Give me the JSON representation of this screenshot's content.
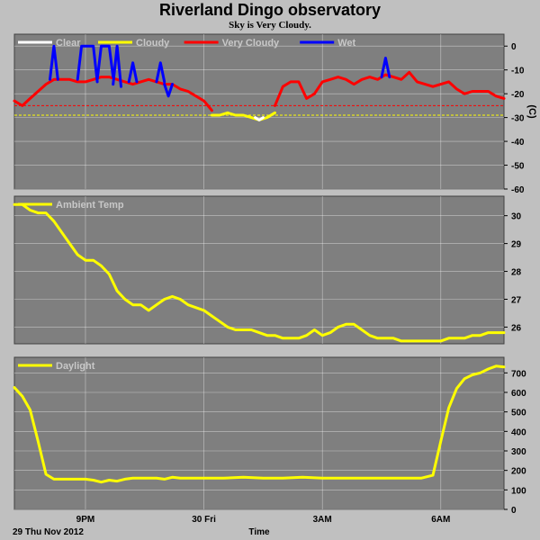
{
  "title": "Riverland Dingo observatory",
  "subtitle": "Sky is Very Cloudy.",
  "colors": {
    "background": "#c0c0c0",
    "panel": "#7f7f7f",
    "grid": "#ffffff",
    "clear": "#ffffff",
    "cloudy": "#ffff00",
    "very_cloudy": "#ff0000",
    "wet": "#0000ff",
    "temp": "#ffff00",
    "daylight": "#ffff00",
    "threshold_very_cloudy": "#ff0000",
    "threshold_cloudy": "#ffff00"
  },
  "x_axis": {
    "label": "Time",
    "date_label": "29 Thu Nov 2012",
    "ticks": [
      {
        "x": 21.0,
        "label": "9PM"
      },
      {
        "x": 24.0,
        "label": "30 Fri"
      },
      {
        "x": 27.0,
        "label": "3AM"
      },
      {
        "x": 30.0,
        "label": "6AM"
      }
    ],
    "range": [
      19.2,
      31.6
    ]
  },
  "chart_data": [
    {
      "type": "line",
      "ylabel": "(C)",
      "ylim": [
        -60,
        5
      ],
      "yticks": [
        0,
        -10,
        -20,
        -30,
        -40,
        -50,
        -60
      ],
      "legend": [
        "Clear",
        "Cloudy",
        "Very Cloudy",
        "Wet"
      ],
      "grid": true,
      "thresholds": [
        {
          "name": "very cloudy limit",
          "value": -25,
          "style": "dashed",
          "color": "#ff0000"
        },
        {
          "name": "cloudy limit",
          "value": -29,
          "style": "dashed",
          "color": "#ffff00"
        }
      ],
      "series": [
        {
          "name": "Very Cloudy",
          "color": "#ff0000",
          "points": [
            [
              19.2,
              -23
            ],
            [
              19.4,
              -25
            ],
            [
              19.6,
              -22
            ],
            [
              19.8,
              -19
            ],
            [
              20.0,
              -16
            ],
            [
              20.2,
              -14
            ],
            [
              20.4,
              -14
            ],
            [
              20.6,
              -14
            ],
            [
              20.8,
              -15
            ],
            [
              21.0,
              -15
            ],
            [
              21.2,
              -14
            ],
            [
              21.4,
              -13
            ],
            [
              21.6,
              -13
            ],
            [
              21.8,
              -14
            ],
            [
              22.0,
              -15
            ],
            [
              22.2,
              -16
            ],
            [
              22.4,
              -15
            ],
            [
              22.6,
              -14
            ],
            [
              22.8,
              -15
            ],
            [
              23.0,
              -16
            ],
            [
              23.2,
              -16
            ],
            [
              23.4,
              -18
            ],
            [
              23.6,
              -19
            ],
            [
              23.8,
              -21
            ],
            [
              24.0,
              -23
            ],
            [
              24.2,
              -27
            ]
          ]
        },
        {
          "name": "Cloudy",
          "color": "#ffff00",
          "points": [
            [
              24.2,
              -29
            ],
            [
              24.4,
              -29
            ],
            [
              24.6,
              -28
            ],
            [
              24.8,
              -29
            ],
            [
              25.0,
              -29
            ],
            [
              25.2,
              -30
            ],
            [
              25.4,
              -31
            ],
            [
              25.6,
              -30
            ],
            [
              25.8,
              -28
            ]
          ]
        },
        {
          "name": "Very Cloudy",
          "color": "#ff0000",
          "points": [
            [
              25.8,
              -25
            ],
            [
              26.0,
              -17
            ],
            [
              26.2,
              -15
            ],
            [
              26.4,
              -15
            ],
            [
              26.6,
              -22
            ],
            [
              26.8,
              -20
            ],
            [
              27.0,
              -15
            ],
            [
              27.2,
              -14
            ],
            [
              27.4,
              -13
            ],
            [
              27.6,
              -14
            ],
            [
              27.8,
              -16
            ],
            [
              28.0,
              -14
            ],
            [
              28.2,
              -13
            ],
            [
              28.4,
              -14
            ],
            [
              28.6,
              -12
            ],
            [
              28.8,
              -13
            ],
            [
              29.0,
              -14
            ],
            [
              29.2,
              -11
            ],
            [
              29.4,
              -15
            ],
            [
              29.6,
              -16
            ],
            [
              29.8,
              -17
            ],
            [
              30.0,
              -16
            ],
            [
              30.2,
              -15
            ],
            [
              30.4,
              -18
            ],
            [
              30.6,
              -20
            ],
            [
              30.8,
              -19
            ],
            [
              31.0,
              -19
            ],
            [
              31.2,
              -19
            ],
            [
              31.4,
              -21
            ],
            [
              31.6,
              -22
            ]
          ]
        },
        {
          "name": "Clear",
          "color": "#ffffff",
          "points": [
            [
              25.3,
              -30
            ],
            [
              25.4,
              -31
            ],
            [
              25.5,
              -30
            ]
          ]
        },
        {
          "name": "Wet",
          "color": "#0000ff",
          "points": [
            [
              20.1,
              -14
            ],
            [
              20.2,
              0
            ],
            [
              20.3,
              -14
            ]
          ]
        },
        {
          "name": "Wet",
          "color": "#0000ff",
          "points": [
            [
              20.8,
              -14
            ],
            [
              20.9,
              0
            ],
            [
              21.2,
              0
            ],
            [
              21.3,
              -15
            ]
          ]
        },
        {
          "name": "Wet",
          "color": "#0000ff",
          "points": [
            [
              21.3,
              -14
            ],
            [
              21.4,
              0
            ],
            [
              21.6,
              0
            ],
            [
              21.7,
              -13
            ]
          ]
        },
        {
          "name": "Wet",
          "color": "#0000ff",
          "points": [
            [
              21.7,
              -16
            ],
            [
              21.8,
              0
            ],
            [
              21.9,
              -17
            ]
          ]
        },
        {
          "name": "Wet",
          "color": "#0000ff",
          "points": [
            [
              22.1,
              -15
            ],
            [
              22.2,
              -7
            ],
            [
              22.3,
              -15
            ]
          ]
        },
        {
          "name": "Wet",
          "color": "#0000ff",
          "points": [
            [
              22.8,
              -15
            ],
            [
              22.9,
              -7
            ],
            [
              23.0,
              -15
            ]
          ]
        },
        {
          "name": "Wet",
          "color": "#0000ff",
          "points": [
            [
              23.0,
              -16
            ],
            [
              23.1,
              -21
            ],
            [
              23.2,
              -16
            ]
          ]
        },
        {
          "name": "Wet",
          "color": "#0000ff",
          "points": [
            [
              28.5,
              -13
            ],
            [
              28.6,
              -5
            ],
            [
              28.7,
              -13
            ]
          ]
        }
      ]
    },
    {
      "type": "line",
      "ylim": [
        25.4,
        30.7
      ],
      "yticks": [
        26,
        27,
        28,
        29,
        30
      ],
      "legend": [
        "Ambient Temp"
      ],
      "grid": true,
      "series": [
        {
          "name": "Ambient Temp",
          "color": "#ffff00",
          "points": [
            [
              19.2,
              30.4
            ],
            [
              19.4,
              30.4
            ],
            [
              19.6,
              30.2
            ],
            [
              19.8,
              30.1
            ],
            [
              20.0,
              30.1
            ],
            [
              20.2,
              29.8
            ],
            [
              20.4,
              29.4
            ],
            [
              20.6,
              29.0
            ],
            [
              20.8,
              28.6
            ],
            [
              21.0,
              28.4
            ],
            [
              21.2,
              28.4
            ],
            [
              21.4,
              28.2
            ],
            [
              21.6,
              27.9
            ],
            [
              21.8,
              27.3
            ],
            [
              22.0,
              27.0
            ],
            [
              22.2,
              26.8
            ],
            [
              22.4,
              26.8
            ],
            [
              22.6,
              26.6
            ],
            [
              22.8,
              26.8
            ],
            [
              23.0,
              27.0
            ],
            [
              23.2,
              27.1
            ],
            [
              23.4,
              27.0
            ],
            [
              23.6,
              26.8
            ],
            [
              23.8,
              26.7
            ],
            [
              24.0,
              26.6
            ],
            [
              24.2,
              26.4
            ],
            [
              24.4,
              26.2
            ],
            [
              24.6,
              26.0
            ],
            [
              24.8,
              25.9
            ],
            [
              25.0,
              25.9
            ],
            [
              25.2,
              25.9
            ],
            [
              25.4,
              25.8
            ],
            [
              25.6,
              25.7
            ],
            [
              25.8,
              25.7
            ],
            [
              26.0,
              25.6
            ],
            [
              26.2,
              25.6
            ],
            [
              26.4,
              25.6
            ],
            [
              26.6,
              25.7
            ],
            [
              26.8,
              25.9
            ],
            [
              27.0,
              25.7
            ],
            [
              27.2,
              25.8
            ],
            [
              27.4,
              26.0
            ],
            [
              27.6,
              26.1
            ],
            [
              27.8,
              26.1
            ],
            [
              28.0,
              25.9
            ],
            [
              28.2,
              25.7
            ],
            [
              28.4,
              25.6
            ],
            [
              28.6,
              25.6
            ],
            [
              28.8,
              25.6
            ],
            [
              29.0,
              25.5
            ],
            [
              29.2,
              25.5
            ],
            [
              29.4,
              25.5
            ],
            [
              29.6,
              25.5
            ],
            [
              29.8,
              25.5
            ],
            [
              30.0,
              25.5
            ],
            [
              30.2,
              25.6
            ],
            [
              30.4,
              25.6
            ],
            [
              30.6,
              25.6
            ],
            [
              30.8,
              25.7
            ],
            [
              31.0,
              25.7
            ],
            [
              31.2,
              25.8
            ],
            [
              31.4,
              25.8
            ],
            [
              31.6,
              25.8
            ]
          ]
        }
      ]
    },
    {
      "type": "line",
      "ylim": [
        0,
        780
      ],
      "yticks": [
        0,
        100,
        200,
        300,
        400,
        500,
        600,
        700
      ],
      "legend": [
        "Daylight"
      ],
      "grid": true,
      "series": [
        {
          "name": "Daylight",
          "color": "#ffff00",
          "points": [
            [
              19.2,
              625
            ],
            [
              19.4,
              580
            ],
            [
              19.6,
              510
            ],
            [
              19.8,
              350
            ],
            [
              20.0,
              180
            ],
            [
              20.2,
              155
            ],
            [
              20.4,
              155
            ],
            [
              20.6,
              155
            ],
            [
              20.8,
              155
            ],
            [
              21.0,
              155
            ],
            [
              21.2,
              150
            ],
            [
              21.4,
              140
            ],
            [
              21.6,
              150
            ],
            [
              21.8,
              145
            ],
            [
              22.0,
              155
            ],
            [
              22.2,
              160
            ],
            [
              22.4,
              160
            ],
            [
              22.6,
              160
            ],
            [
              22.8,
              160
            ],
            [
              23.0,
              155
            ],
            [
              23.2,
              165
            ],
            [
              23.4,
              160
            ],
            [
              23.6,
              160
            ],
            [
              23.8,
              160
            ],
            [
              24.0,
              160
            ],
            [
              24.5,
              160
            ],
            [
              25.0,
              165
            ],
            [
              25.5,
              160
            ],
            [
              26.0,
              160
            ],
            [
              26.5,
              165
            ],
            [
              27.0,
              160
            ],
            [
              27.5,
              160
            ],
            [
              28.0,
              160
            ],
            [
              28.5,
              160
            ],
            [
              29.0,
              160
            ],
            [
              29.5,
              160
            ],
            [
              29.8,
              175
            ],
            [
              30.0,
              350
            ],
            [
              30.2,
              520
            ],
            [
              30.4,
              620
            ],
            [
              30.6,
              670
            ],
            [
              30.8,
              690
            ],
            [
              31.0,
              700
            ],
            [
              31.2,
              720
            ],
            [
              31.4,
              735
            ],
            [
              31.6,
              730
            ]
          ]
        }
      ]
    }
  ]
}
